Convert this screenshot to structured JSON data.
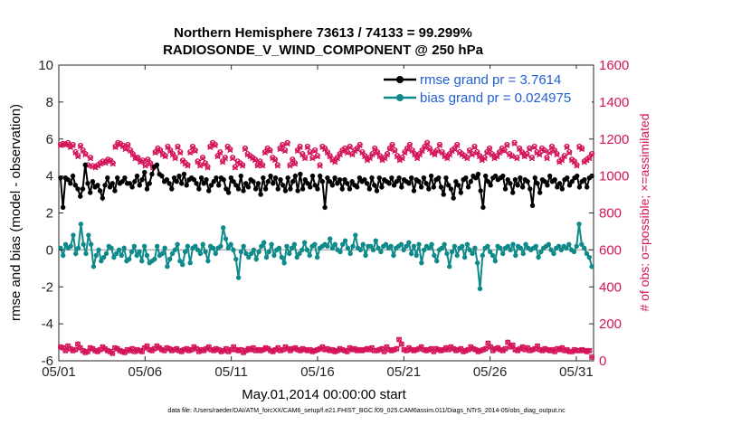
{
  "chart_data": {
    "type": "line",
    "title_line1": "Northern Hemisphere 73613 / 74133 = 99.299%",
    "title_line2": "RADIOSONDE_V_WIND_COMPONENT @ 250 hPa",
    "xlabel": "May.01,2014 00:00:00 start",
    "ylabel_left": "rmse and bias (model - observation)",
    "ylabel_right": "# of obs: o=possible; ×=assimilated",
    "footnote": "data file: /Users/raeder/DAI/ATM_forcXX/CAM6_setup/f.e21.FHIST_BGC.f09_025.CAM6assim.011/Diags_NTrS_2014-05/obs_diag_output.nc",
    "xlim": [
      1,
      32
    ],
    "x_ticks": [
      1,
      6,
      11,
      16,
      21,
      26,
      31
    ],
    "x_tick_labels": [
      "05/01",
      "05/06",
      "05/11",
      "05/16",
      "05/21",
      "05/26",
      "05/31"
    ],
    "ylim_left": [
      -6,
      10
    ],
    "y_ticks_left": [
      "-6",
      "-4",
      "-2",
      "0",
      "2",
      "4",
      "6",
      "8",
      "10"
    ],
    "ylim_right": [
      0,
      1600
    ],
    "y_ticks_right": [
      "0",
      "200",
      "400",
      "600",
      "800",
      "1000",
      "1200",
      "1400",
      "1600"
    ],
    "legend_position": "top-right",
    "series": [
      {
        "name": "rmse grand pr = 3.7614",
        "axis": "left",
        "color": "#000000",
        "values": [
          3.9,
          2.3,
          3.9,
          3.8,
          3.6,
          4.0,
          3.5,
          3.3,
          2.9,
          3.3,
          4.6,
          3.6,
          3.1,
          3.7,
          3.4,
          3.5,
          3.2,
          2.8,
          3.5,
          3.9,
          3.4,
          3.6,
          3.2,
          3.9,
          3.6,
          3.7,
          3.9,
          3.6,
          3.6,
          3.4,
          3.7,
          4.0,
          3.5,
          3.8,
          4.2,
          3.3,
          3.6,
          4.1,
          4.5,
          4.6,
          4.1,
          4.0,
          3.7,
          3.8,
          3.6,
          3.3,
          3.9,
          3.7,
          4.0,
          3.6,
          4.1,
          3.5,
          3.8,
          3.9,
          3.8,
          3.6,
          3.3,
          3.9,
          3.6,
          3.8,
          3.2,
          3.5,
          3.7,
          3.9,
          3.5,
          3.9,
          3.8,
          3.3,
          3.1,
          3.9,
          3.7,
          3.5,
          3.3,
          4.0,
          3.2,
          3.6,
          3.4,
          3.8,
          3.7,
          3.3,
          3.6,
          3.0,
          3.9,
          3.3,
          3.7,
          4.0,
          3.6,
          3.9,
          3.3,
          3.8,
          3.5,
          3.2,
          3.9,
          3.3,
          3.7,
          4.0,
          3.2,
          4.1,
          3.3,
          3.8,
          3.6,
          3.4,
          4.0,
          3.5,
          3.3,
          4.0,
          3.7,
          2.3,
          3.9,
          3.7,
          3.5,
          3.9,
          3.6,
          3.8,
          3.3,
          3.8,
          3.6,
          3.3,
          3.7,
          3.5,
          3.4,
          3.9,
          3.7,
          3.8,
          3.6,
          3.3,
          3.9,
          3.5,
          3.2,
          3.9,
          3.4,
          3.8,
          3.7,
          3.6,
          3.9,
          3.5,
          3.7,
          3.9,
          3.4,
          3.8,
          3.7,
          3.6,
          3.9,
          3.2,
          3.8,
          3.7,
          3.4,
          3.9,
          3.6,
          3.3,
          4.0,
          3.4,
          3.8,
          3.9,
          3.4,
          3.0,
          3.9,
          3.5,
          3.3,
          2.8,
          3.7,
          3.5,
          3.1,
          3.8,
          3.9,
          3.4,
          3.7,
          4.0,
          3.9,
          4.1,
          3.2,
          2.3,
          4.0,
          3.7,
          3.5,
          3.9,
          4.0,
          3.8,
          3.9,
          4.0,
          3.3,
          3.8,
          3.6,
          3.1,
          3.8,
          3.5,
          3.9,
          3.4,
          3.8,
          3.7,
          3.3,
          2.4,
          3.9,
          3.6,
          3.1,
          3.8,
          3.7,
          3.5,
          4.0,
          3.7,
          3.8,
          3.4,
          3.6,
          3.3,
          3.8,
          3.9,
          3.5,
          3.7,
          3.9,
          4.0,
          3.4,
          3.7,
          3.8,
          3.4,
          3.9,
          4.0
        ]
      },
      {
        "name": "bias grand pr = 0.024975",
        "axis": "left",
        "color": "#0f8a8a",
        "values": [
          0.1,
          -0.3,
          0.3,
          0.1,
          0.2,
          0.8,
          -0.2,
          0.1,
          1.4,
          0.3,
          -0.2,
          0.8,
          0.3,
          -0.9,
          -0.3,
          0.0,
          -0.6,
          -0.4,
          -0.2,
          0.2,
          0.1,
          -0.4,
          -0.2,
          0.0,
          -0.3,
          0.1,
          -0.6,
          -0.5,
          -0.1,
          0.2,
          -0.3,
          -0.1,
          -0.6,
          0.2,
          -0.3,
          -0.7,
          -0.6,
          -0.5,
          0.2,
          -0.3,
          -0.2,
          0.1,
          -0.9,
          -0.5,
          -0.2,
          0.0,
          0.3,
          -0.6,
          -0.8,
          -0.1,
          0.2,
          -0.7,
          0.1,
          0.2,
          0.0,
          -0.2,
          0.3,
          -0.1,
          -0.6,
          0.2,
          0.1,
          -0.2,
          0.1,
          0.2,
          1.2,
          0.6,
          0.1,
          0.3,
          0.0,
          -0.5,
          -1.5,
          -0.1,
          0.2,
          -0.2,
          -0.4,
          -0.2,
          0.0,
          -0.5,
          -0.1,
          0.2,
          0.4,
          -0.4,
          -0.1,
          0.3,
          -0.3,
          0.0,
          0.1,
          -0.4,
          -0.7,
          0.2,
          -0.2,
          0.1,
          0.3,
          -0.4,
          -0.2,
          0.0,
          0.4,
          0.0,
          -0.3,
          0.2,
          0.3,
          -0.4,
          0.1,
          0.2,
          0.3,
          0.2,
          0.6,
          0.1,
          0.3,
          0.0,
          -0.1,
          0.3,
          0.5,
          0.1,
          -0.2,
          0.2,
          0.8,
          0.1,
          0.0,
          0.3,
          -0.3,
          0.2,
          0.2,
          0.0,
          0.5,
          0.1,
          -0.1,
          0.2,
          0.3,
          0.1,
          0.2,
          -0.3,
          0.1,
          0.2,
          0.3,
          0.0,
          0.2,
          0.4,
          -0.2,
          0.2,
          -0.3,
          0.3,
          -0.7,
          0.0,
          0.2,
          0.1,
          0.3,
          -0.3,
          -0.6,
          0.0,
          0.1,
          0.3,
          -0.2,
          -0.9,
          -0.1,
          0.2,
          -0.3,
          0.1,
          0.2,
          -0.4,
          0.3,
          0.0,
          -0.2,
          0.1,
          -0.7,
          -2.1,
          -0.3,
          0.1,
          0.2,
          -0.1,
          -0.3,
          -0.6,
          0.2,
          0.1,
          -0.2,
          0.1,
          0.2,
          0.0,
          0.3,
          -0.3,
          0.2,
          0.1,
          -0.2,
          0.3,
          0.1,
          0.0,
          0.1,
          0.2,
          -0.4,
          -0.1,
          0.1,
          0.2,
          0.3,
          0.0,
          -0.2,
          0.1,
          0.2,
          0.0,
          0.2,
          0.1,
          0.3,
          0.0,
          -0.1,
          0.2,
          1.4,
          0.3,
          0.1,
          -0.2,
          -0.4,
          -0.9
        ]
      },
      {
        "name": "obs possible",
        "axis": "right",
        "color": "#d4145a",
        "values": [
          1170,
          1175,
          1172,
          1180,
          1160,
          1170,
          1130,
          1110,
          1165,
          1140,
          1120,
          1060,
          1100,
          1055,
          1050,
          1060,
          1070,
          1080,
          1075,
          1090,
          1085,
          1070,
          1160,
          1180,
          1175,
          1165,
          1150,
          1170,
          1140,
          1120,
          1100,
          1100,
          1080,
          1085,
          1060,
          1090,
          1070,
          1050,
          1130,
          1150,
          1140,
          1120,
          1110,
          1160,
          1140,
          1120,
          1100,
          1160,
          1130,
          1085,
          1070,
          1060,
          1130,
          1160,
          1140,
          1080,
          1060,
          1100,
          1070,
          1050,
          1160,
          1180,
          1170,
          1110,
          1130,
          1080,
          1100,
          1160,
          1145,
          1100,
          1050,
          1080,
          1070,
          1060,
          1150,
          1120,
          1110,
          1100,
          1090,
          1060,
          1080,
          1060,
          1130,
          1150,
          1140,
          1100,
          1090,
          1060,
          1150,
          1170,
          1140,
          1180,
          1060,
          1090,
          1070,
          1140,
          1160,
          1120,
          1100,
          1160,
          1130,
          1100,
          1140,
          1110,
          1060,
          1160,
          1150,
          1130,
          1110,
          1090,
          1080,
          1100,
          1120,
          1140,
          1150,
          1130,
          1160,
          1120,
          1140,
          1150,
          1170,
          1130,
          1110,
          1090,
          1100,
          1120,
          1150,
          1130,
          1110,
          1090,
          1100,
          1120,
          1150,
          1170,
          1140,
          1110,
          1090,
          1100,
          1130,
          1150,
          1170,
          1140,
          1120,
          1100,
          1120,
          1140,
          1160,
          1180,
          1150,
          1130,
          1120,
          1140,
          1170,
          1130,
          1110,
          1100,
          1120,
          1140,
          1150,
          1170,
          1130,
          1120,
          1110,
          1100,
          1140,
          1120,
          1160,
          1130,
          1110,
          1090,
          1100,
          1130,
          1150,
          1120,
          1100,
          1110,
          1130,
          1150,
          1140,
          1170,
          1120,
          1110,
          1180,
          1100,
          1150,
          1130,
          1110,
          1120,
          1150,
          1100,
          1160,
          1130,
          1120,
          1150,
          1140,
          1100,
          1130,
          1160,
          1140,
          1120,
          1080,
          1090,
          1110,
          1160,
          1130,
          1090,
          1080,
          1060,
          1160,
          1150,
          1080,
          1090,
          1100,
          1120
        ]
      },
      {
        "name": "obs assimilated",
        "axis": "right",
        "color": "#d4145a",
        "values": [
          1165,
          1170,
          1168,
          1175,
          1155,
          1165,
          1125,
          1105,
          1160,
          1135,
          1115,
          1055,
          1095,
          1050,
          1045,
          1055,
          1065,
          1075,
          1070,
          1085,
          1080,
          1065,
          1155,
          1175,
          1170,
          1160,
          1145,
          1165,
          1135,
          1115,
          1095,
          1095,
          1075,
          1080,
          1055,
          1085,
          1065,
          1045,
          1125,
          1145,
          1135,
          1115,
          1105,
          1155,
          1135,
          1115,
          1095,
          1155,
          1125,
          1080,
          1065,
          1055,
          1125,
          1155,
          1135,
          1075,
          1055,
          1095,
          1065,
          1045,
          1155,
          1175,
          1165,
          1105,
          1125,
          1075,
          1095,
          1155,
          1140,
          1095,
          1045,
          1075,
          1065,
          1055,
          1145,
          1115,
          1105,
          1095,
          1085,
          1055,
          1075,
          1055,
          1125,
          1145,
          1135,
          1095,
          1085,
          1055,
          1145,
          1165,
          1135,
          1175,
          1055,
          1085,
          1065,
          1135,
          1155,
          1115,
          1095,
          1155,
          1125,
          1095,
          1135,
          1105,
          1055,
          1155,
          1145,
          1125,
          1105,
          1085,
          1075,
          1095,
          1115,
          1135,
          1145,
          1125,
          1155,
          1115,
          1135,
          1145,
          1165,
          1125,
          1105,
          1085,
          1095,
          1115,
          1145,
          1125,
          1105,
          1085,
          1095,
          1115,
          1145,
          1165,
          1135,
          1105,
          1085,
          1095,
          1125,
          1145,
          1165,
          1135,
          1115,
          1095,
          1115,
          1135,
          1155,
          1175,
          1145,
          1125,
          1115,
          1135,
          1165,
          1125,
          1105,
          1095,
          1115,
          1135,
          1145,
          1165,
          1125,
          1115,
          1105,
          1095,
          1135,
          1115,
          1155,
          1125,
          1105,
          1085,
          1095,
          1125,
          1145,
          1115,
          1095,
          1105,
          1125,
          1145,
          1135,
          1165,
          1115,
          1105,
          1175,
          1095,
          1145,
          1125,
          1105,
          1115,
          1145,
          1095,
          1155,
          1125,
          1115,
          1145,
          1135,
          1095,
          1125,
          1155,
          1135,
          1115,
          1075,
          1085,
          1105,
          1155,
          1125,
          1085,
          1075,
          1055,
          1155,
          1145,
          1075,
          1085,
          1095,
          1115
        ]
      },
      {
        "name": "obs possible (low)",
        "axis": "right",
        "color": "#d4145a",
        "values": [
          75,
          70,
          55,
          80,
          65,
          55,
          60,
          90,
          70,
          55,
          45,
          50,
          70,
          65,
          55,
          50,
          60,
          75,
          65,
          55,
          50,
          40,
          70,
          65,
          55,
          50,
          45,
          60,
          55,
          65,
          50,
          60,
          55,
          50,
          70,
          80,
          60,
          55,
          65,
          80,
          70,
          60,
          55,
          70,
          65,
          55,
          60,
          65,
          55,
          50,
          60,
          65,
          55,
          60,
          75,
          65,
          50,
          60,
          55,
          65,
          75,
          60,
          55,
          65,
          60,
          50,
          55,
          65,
          50,
          60,
          75,
          60,
          55,
          60,
          45,
          55,
          65,
          60,
          70,
          55,
          60,
          55,
          60,
          70,
          65,
          55,
          50,
          60,
          70,
          55,
          60,
          75,
          65,
          55,
          65,
          70,
          60,
          55,
          65,
          60,
          55,
          60,
          50,
          55,
          60,
          65,
          75,
          60,
          65,
          55,
          60,
          50,
          55,
          65,
          60,
          55,
          50,
          70,
          60,
          65,
          55,
          60,
          55,
          60,
          65,
          60,
          70,
          55,
          55,
          60,
          65,
          50,
          75,
          60,
          55,
          60,
          65,
          115,
          90,
          60,
          55,
          70,
          60,
          55,
          60,
          65,
          75,
          60,
          55,
          60,
          65,
          50,
          65,
          60,
          55,
          60,
          70,
          60,
          75,
          65,
          55,
          60,
          65,
          50,
          55,
          60,
          75,
          65,
          60,
          50,
          55,
          60,
          65,
          95,
          75,
          55,
          65,
          70,
          60,
          55,
          65,
          100,
          75,
          85,
          60,
          55,
          65,
          75,
          60,
          70,
          55,
          60,
          65,
          80,
          60,
          55,
          65,
          60,
          55,
          60,
          50,
          65,
          60,
          70,
          55,
          60,
          50,
          50,
          60,
          55,
          55,
          60,
          55,
          50,
          55,
          20
        ]
      }
    ]
  }
}
